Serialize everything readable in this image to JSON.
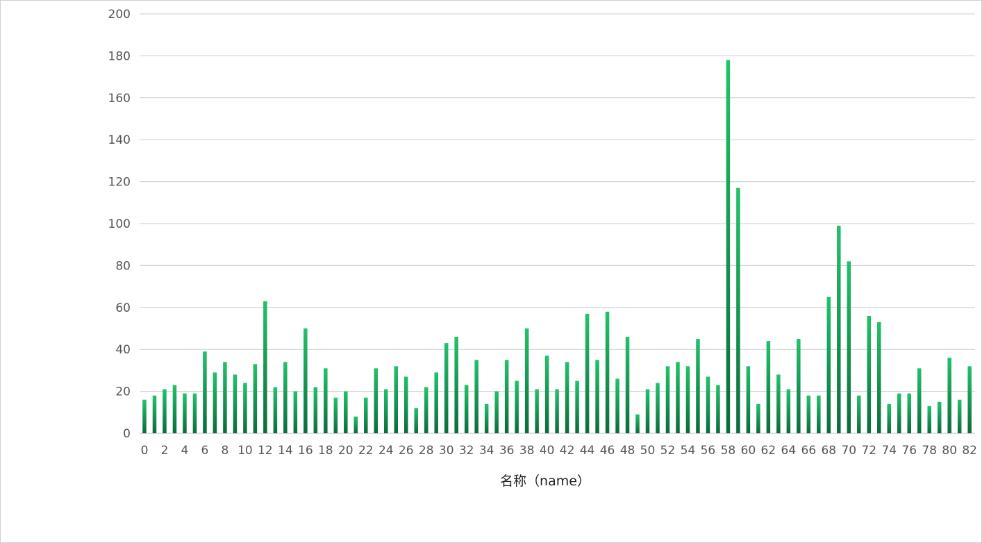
{
  "chart_data": {
    "type": "bar",
    "title": "",
    "xlabel": "名称（name）",
    "ylabel": "",
    "ylim": [
      0,
      200
    ],
    "yticks": [
      0,
      20,
      40,
      60,
      80,
      100,
      120,
      140,
      160,
      180,
      200
    ],
    "grid": true,
    "legend": "none",
    "categories": [
      0,
      1,
      2,
      3,
      4,
      5,
      6,
      7,
      8,
      9,
      10,
      11,
      12,
      13,
      14,
      15,
      16,
      17,
      18,
      19,
      20,
      21,
      22,
      23,
      24,
      25,
      26,
      27,
      28,
      29,
      30,
      31,
      32,
      33,
      34,
      35,
      36,
      37,
      38,
      39,
      40,
      41,
      42,
      43,
      44,
      45,
      46,
      47,
      48,
      49,
      50,
      51,
      52,
      53,
      54,
      55,
      56,
      57,
      58,
      59,
      60,
      61,
      62,
      63,
      64,
      65,
      66,
      67,
      68,
      69,
      70,
      71,
      72,
      73,
      74,
      75,
      76,
      77,
      78,
      79,
      80,
      81,
      82
    ],
    "xtick_labels": [
      "0",
      "2",
      "4",
      "6",
      "8",
      "10",
      "12",
      "14",
      "16",
      "18",
      "20",
      "22",
      "24",
      "26",
      "28",
      "30",
      "32",
      "34",
      "36",
      "38",
      "40",
      "42",
      "44",
      "46",
      "48",
      "50",
      "52",
      "54",
      "56",
      "58",
      "60",
      "62",
      "64",
      "66",
      "68",
      "70",
      "72",
      "74",
      "76",
      "78",
      "80",
      "82"
    ],
    "series": [
      {
        "values": [
          16,
          18,
          21,
          23,
          19,
          19,
          39,
          29,
          34,
          28,
          24,
          33,
          63,
          22,
          34,
          20,
          50,
          22,
          31,
          17,
          20,
          8,
          17,
          31,
          21,
          32,
          27,
          12,
          22,
          29,
          43,
          46,
          23,
          35,
          14,
          20,
          35,
          25,
          50,
          21,
          37,
          21,
          34,
          25,
          57,
          35,
          58,
          26,
          46,
          9,
          21,
          24,
          32,
          34,
          32,
          45,
          27,
          23,
          178,
          117,
          32,
          14,
          44,
          28,
          21,
          45,
          18,
          18,
          65,
          99,
          82,
          18,
          56,
          53,
          14,
          19,
          19,
          31,
          13,
          15,
          36,
          16,
          32
        ]
      }
    ],
    "colors": {
      "bar_top": "#22c26b",
      "bar_bottom": "#0c6b3a"
    }
  }
}
